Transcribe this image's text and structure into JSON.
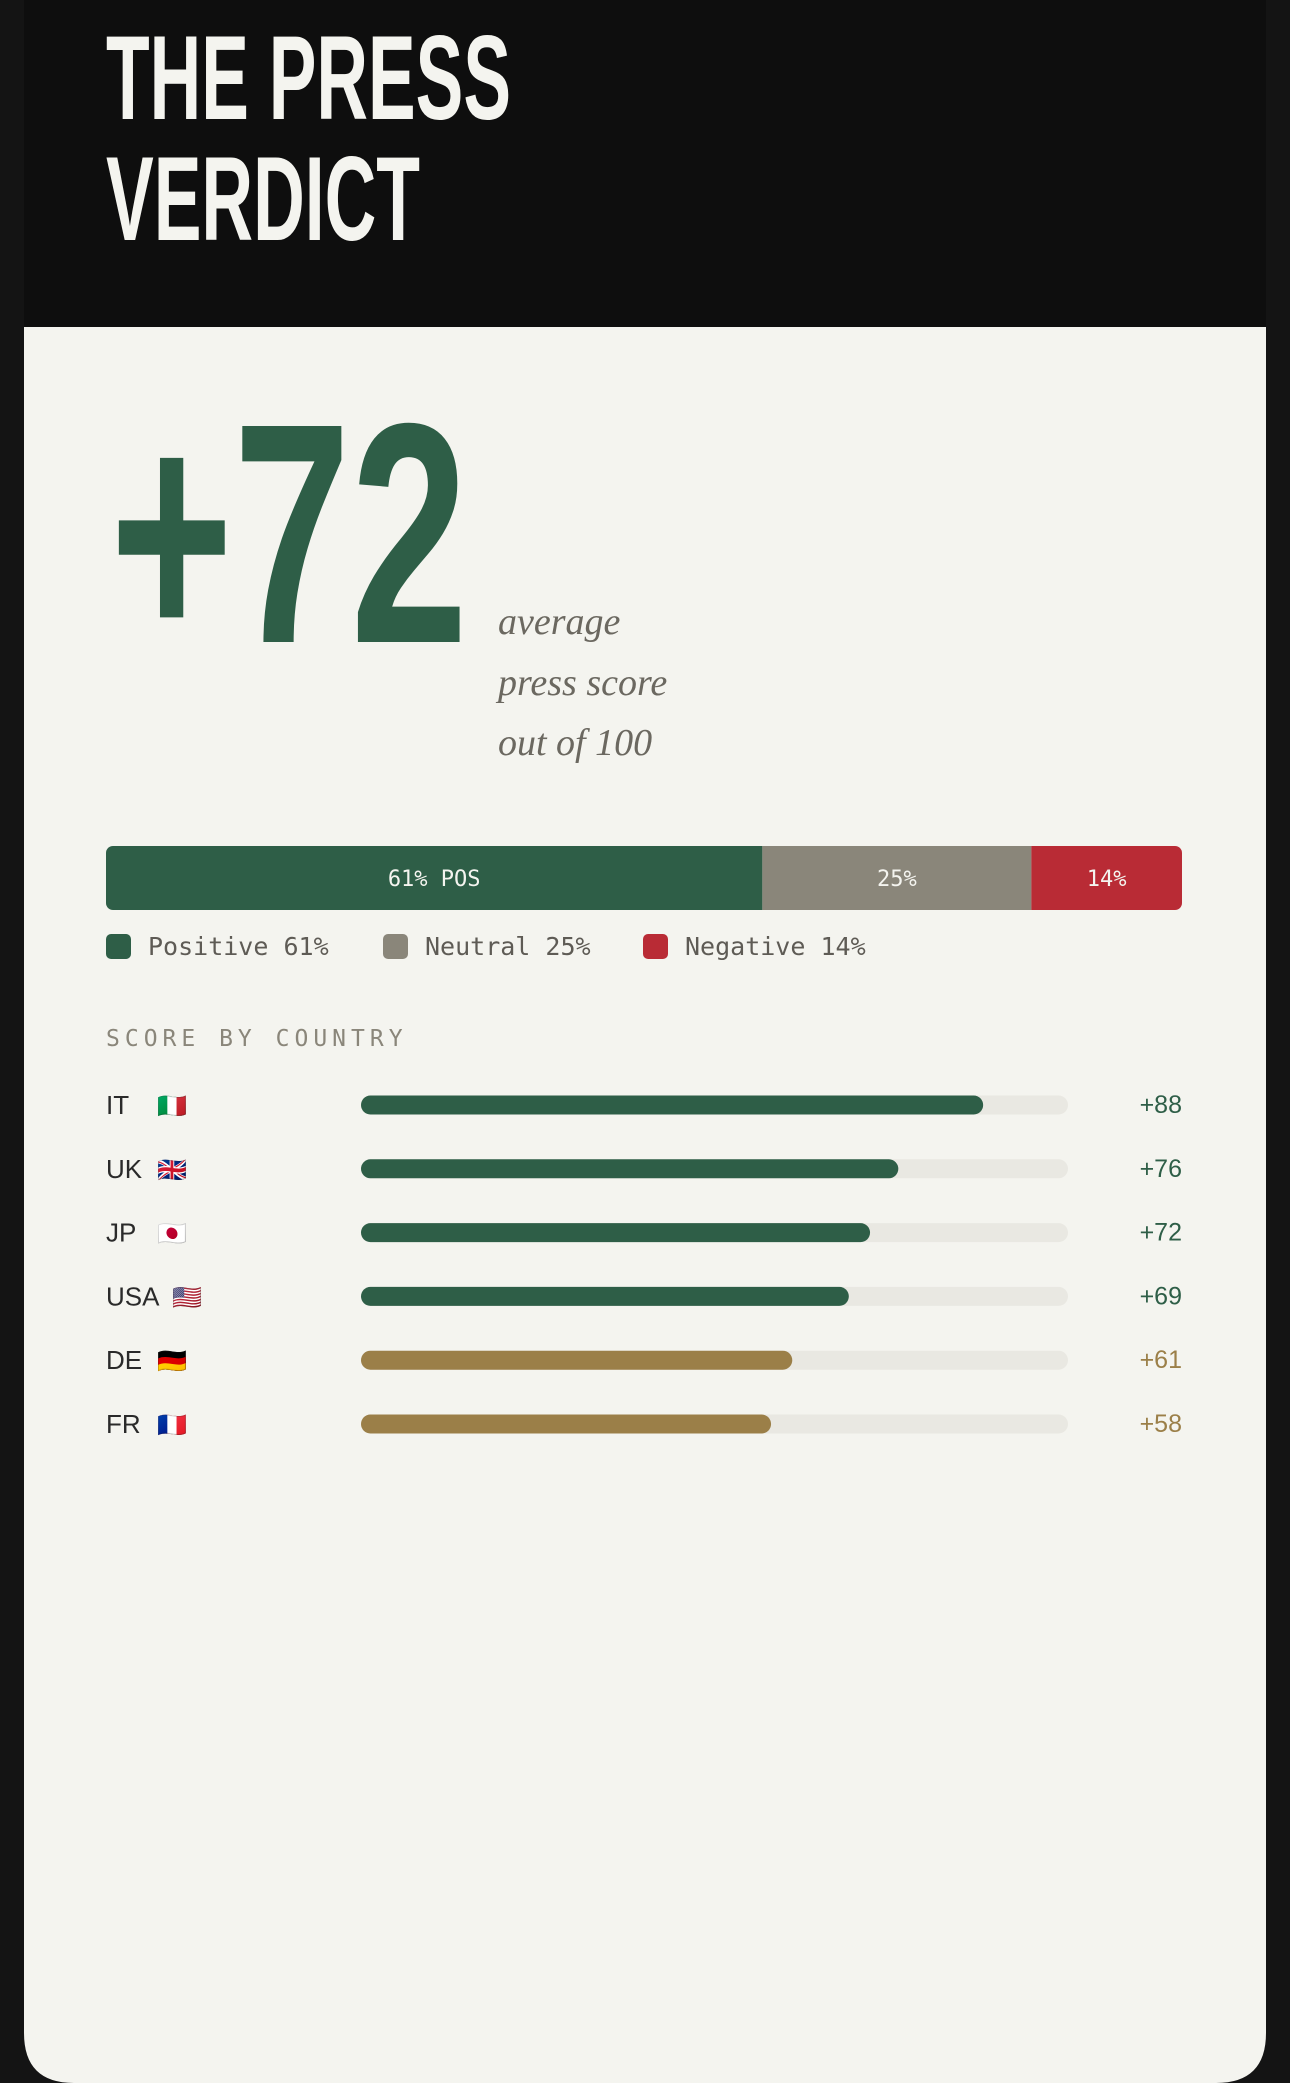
{
  "header": {
    "title_lines": [
      "THE PRESS",
      "VERDICT"
    ]
  },
  "score": {
    "label": "+72",
    "caption_lines": [
      "average",
      "press score",
      "out of 100"
    ]
  },
  "chart_data": [
    {
      "type": "stacked-bar",
      "xlim": [
        0,
        100
      ],
      "series": [
        {
          "name": "Positive 61%",
          "color": "#2e5e47",
          "values": [
            61
          ],
          "value_labels": [
            "61% POS"
          ]
        },
        {
          "name": "Neutral 25%",
          "color": "#8a867a",
          "values": [
            25
          ],
          "value_labels": [
            "25%"
          ]
        },
        {
          "name": "Negative 14%",
          "color": "#b92b35",
          "values": [
            14
          ],
          "value_labels": [
            "14%"
          ]
        }
      ]
    },
    {
      "type": "hbar",
      "title": "SCORE BY COUNTRY",
      "categories": [
        "IT",
        "UK",
        "JP",
        "USA",
        "DE",
        "FR"
      ],
      "flags": [
        "🇮🇹",
        "🇬🇧",
        "🇯🇵",
        "🇺🇸",
        "🇩🇪",
        "🇫🇷"
      ],
      "values": [
        88,
        76,
        72,
        69,
        61,
        58
      ],
      "value_labels": [
        "+88",
        "+76",
        "+72",
        "+69",
        "+61",
        "+58"
      ],
      "colors": [
        "#2e5e47",
        "#2e5e47",
        "#2e5e47",
        "#2e5e47",
        "#9b7f48",
        "#9b7f48"
      ],
      "xlim": [
        0,
        100
      ]
    }
  ]
}
